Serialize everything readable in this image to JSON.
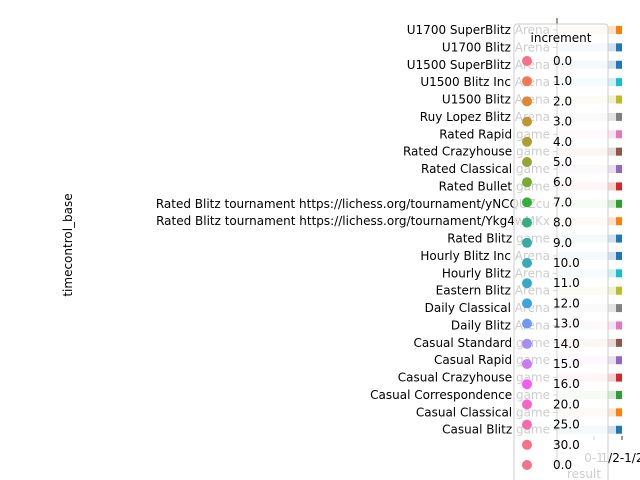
{
  "chart_data": {
    "type": "scatter",
    "ylabel": "timecontrol_base",
    "xlabel": "result",
    "x_categories": [
      "0-1",
      "1/2-1/2"
    ],
    "categories": [
      "U1700 SuperBlitz Arena",
      "U1700 Blitz Arena",
      "U1500 SuperBlitz Arena",
      "U1500 Blitz Inc Arena",
      "U1500 Blitz Arena",
      "Ruy Lopez Blitz Arena",
      "Rated Rapid game",
      "Rated Crazyhouse game",
      "Rated Classical game",
      "Rated Bullet game",
      "Rated Blitz tournament https://lichess.org/tournament/yNCQUZcu",
      "Rated Blitz tournament https://lichess.org/tournament/Ykg4wMKx",
      "Rated Blitz game",
      "Hourly Blitz Inc Arena",
      "Hourly Blitz Arena",
      "Eastern Blitz Arena",
      "Daily Classical Arena",
      "Daily Blitz Arena",
      "Casual Standard game",
      "Casual Rapid game",
      "Casual Crazyhouse game",
      "Casual Correspondence game",
      "Casual Classical game",
      "Casual Blitz game"
    ],
    "band_colors": [
      "#ff7f0e",
      "#1f77b4",
      "#1f77b4",
      "#17becf",
      "#bcbd22",
      "#7f7f7f",
      "#e377c2",
      "#8c564b",
      "#9467bd",
      "#d62728",
      "#2ca02c",
      "#ff7f0e",
      "#1f77b4",
      "#1f77b4",
      "#17becf",
      "#bcbd22",
      "#7f7f7f",
      "#e377c2",
      "#8c564b",
      "#9467bd",
      "#d62728",
      "#2ca02c",
      "#ff7f0e",
      "#1f77b4"
    ],
    "legend": {
      "title": "increment",
      "placement": "right",
      "entries": [
        "0.0",
        "1.0",
        "2.0",
        "3.0",
        "4.0",
        "5.0",
        "6.0",
        "7.0",
        "8.0",
        "9.0",
        "10.0",
        "11.0",
        "12.0",
        "13.0",
        "14.0",
        "15.0",
        "16.0",
        "20.0",
        "25.0",
        "30.0",
        "0.0"
      ],
      "colors": [
        "#f77189",
        "#f7754f",
        "#dc8932",
        "#c39532",
        "#ae9d31",
        "#97a431",
        "#77ab31",
        "#33b039",
        "#35ae7f",
        "#36ada4",
        "#37abb6",
        "#38a9c5",
        "#3aa5df",
        "#6e9af4",
        "#a48cf4",
        "#cc7af4",
        "#f45cf2",
        "#f565cc",
        "#f66bad",
        "#f77189",
        "#f77189"
      ]
    }
  }
}
